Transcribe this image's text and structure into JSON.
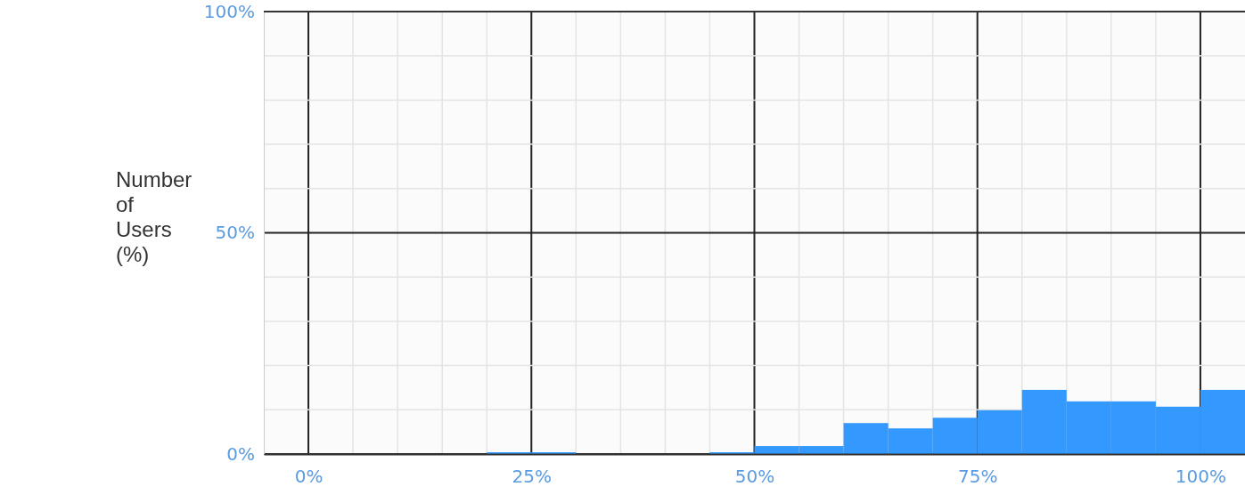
{
  "chart_data": {
    "type": "histogram",
    "ylabel": "Number of Users (%)",
    "bins": [
      0,
      5,
      10,
      15,
      20,
      25,
      30,
      35,
      40,
      45,
      50,
      55,
      60,
      65,
      70,
      75,
      80,
      85,
      90,
      95,
      100,
      105
    ],
    "values": [
      0,
      0,
      0,
      0,
      0.4,
      0.4,
      0,
      0,
      0,
      0.4,
      1.8,
      1.8,
      7,
      5.8,
      8.2,
      9.9,
      14.5,
      11.9,
      11.9,
      10.7,
      14.5
    ],
    "color": "#3399ff",
    "xlim": [
      -5,
      105
    ],
    "xticks": [
      {
        "value": 0,
        "label": "0%"
      },
      {
        "value": 5,
        "label": null
      },
      {
        "value": 10,
        "label": null
      },
      {
        "value": 15,
        "label": null
      },
      {
        "value": 20,
        "label": null
      },
      {
        "value": 25,
        "label": "25%"
      },
      {
        "value": 30,
        "label": null
      },
      {
        "value": 35,
        "label": null
      },
      {
        "value": 40,
        "label": null
      },
      {
        "value": 45,
        "label": null
      },
      {
        "value": 50,
        "label": "50%"
      },
      {
        "value": 55,
        "label": null
      },
      {
        "value": 60,
        "label": null
      },
      {
        "value": 65,
        "label": null
      },
      {
        "value": 70,
        "label": null
      },
      {
        "value": 75,
        "label": "75%"
      },
      {
        "value": 80,
        "label": null
      },
      {
        "value": 85,
        "label": null
      },
      {
        "value": 90,
        "label": null
      },
      {
        "value": 95,
        "label": null
      },
      {
        "value": 100,
        "label": "100%"
      }
    ],
    "ylim": [
      0,
      100
    ],
    "yticks": [
      {
        "value": 0,
        "label": "0%"
      },
      {
        "value": 10,
        "label": null
      },
      {
        "value": 20,
        "label": null
      },
      {
        "value": 30,
        "label": null
      },
      {
        "value": 40,
        "label": null
      },
      {
        "value": 50,
        "label": "50%"
      },
      {
        "value": 60,
        "label": null
      },
      {
        "value": 70,
        "label": null
      },
      {
        "value": 80,
        "label": null
      },
      {
        "value": 90,
        "label": null
      },
      {
        "value": 100,
        "label": "100%"
      }
    ],
    "grid": true
  }
}
